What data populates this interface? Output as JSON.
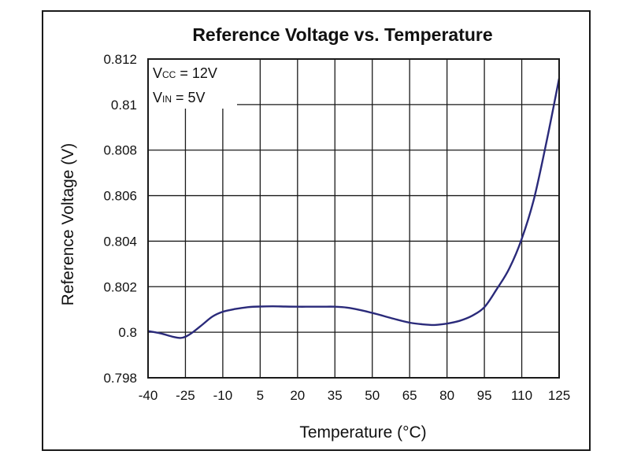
{
  "chart_data": {
    "type": "line",
    "title": "Reference Voltage vs. Temperature",
    "xlabel": "Temperature (°C)",
    "ylabel": "Reference Voltage (V)",
    "x_ticks": [
      "-40",
      "-25",
      "-10",
      "5",
      "20",
      "35",
      "50",
      "65",
      "80",
      "95",
      "110",
      "125"
    ],
    "y_ticks": [
      "0.798",
      "0.8",
      "0.802",
      "0.804",
      "0.806",
      "0.808",
      "0.81",
      "0.812"
    ],
    "xlim": [
      -40,
      125
    ],
    "ylim": [
      0.798,
      0.812
    ],
    "grid": true,
    "annotations": [
      {
        "main": "V",
        "sub": "CC",
        "rest": " = 12V"
      },
      {
        "main": "V",
        "sub": "IN",
        "rest": " = 5V"
      }
    ],
    "series": [
      {
        "color": "#2a2a7a",
        "x": [
          -40,
          -35,
          -30,
          -27,
          -25,
          -22,
          -18,
          -14,
          -10,
          -5,
          0,
          5,
          10,
          15,
          20,
          25,
          30,
          35,
          40,
          45,
          50,
          55,
          60,
          65,
          70,
          75,
          80,
          85,
          90,
          95,
          100,
          105,
          110,
          115,
          120,
          125
        ],
        "y": [
          0.80005,
          0.79995,
          0.7998,
          0.79975,
          0.7998,
          0.8,
          0.80035,
          0.8007,
          0.8009,
          0.80102,
          0.8011,
          0.80113,
          0.80114,
          0.80113,
          0.80112,
          0.80112,
          0.80112,
          0.80112,
          0.80108,
          0.80098,
          0.80085,
          0.8007,
          0.80055,
          0.80042,
          0.80035,
          0.80032,
          0.80038,
          0.8005,
          0.80072,
          0.8011,
          0.8019,
          0.8028,
          0.8041,
          0.8059,
          0.8084,
          0.81115
        ]
      }
    ]
  }
}
